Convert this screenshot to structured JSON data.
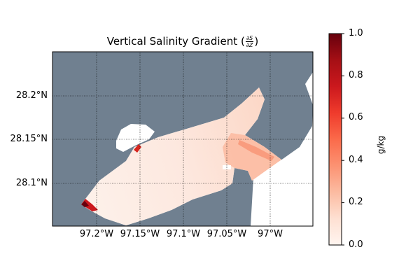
{
  "title": {
    "prefix": "Vertical Salinity Gradient (",
    "numerator": "∂S",
    "denominator": "∂Z",
    "suffix": ")"
  },
  "map": {
    "land_color": "#708090",
    "water_color": "#ffffff",
    "lat_labels": [
      "28.2°N",
      "28.15°N",
      "28.1°N"
    ],
    "lon_labels": [
      "97.2°W",
      "97.15°W",
      "97.1°W",
      "97.05°W",
      "97°W"
    ]
  },
  "colorbar": {
    "label": "g/kg",
    "colormap": "Reds",
    "range": [
      0.0,
      1.0
    ],
    "tick_labels": [
      "0.0",
      "0.2",
      "0.4",
      "0.6",
      "0.8",
      "1.0"
    ]
  }
}
